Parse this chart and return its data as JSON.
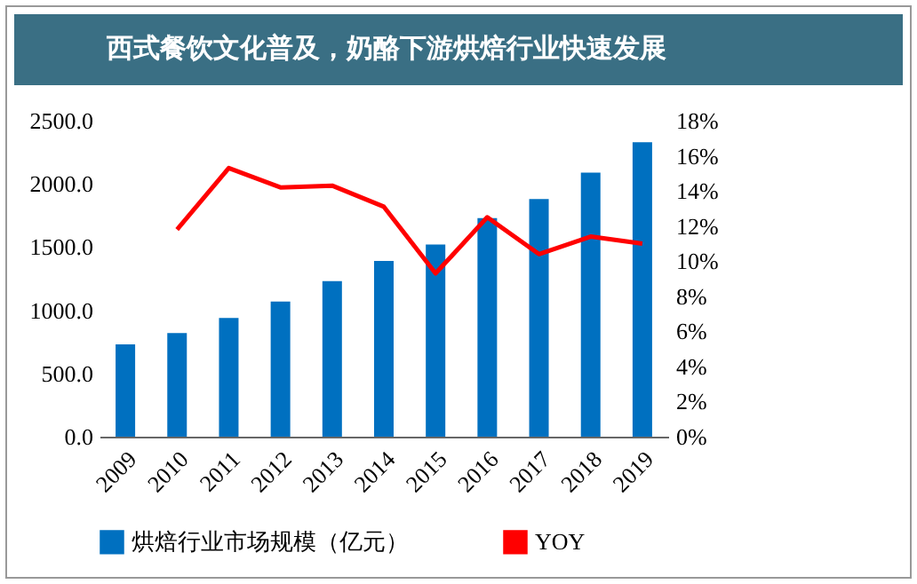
{
  "chart_data": {
    "type": "bar",
    "title": "西式餐饮文化普及，奶酪下游烘焙行业快速发展",
    "categories": [
      "2009",
      "2010",
      "2011",
      "2012",
      "2013",
      "2014",
      "2015",
      "2016",
      "2017",
      "2018",
      "2019"
    ],
    "series": [
      {
        "name": "烘焙行业市场规模（亿元）",
        "color": "#0070c0",
        "values": [
          730,
          820,
          940,
          1070,
          1230,
          1390,
          1520,
          1730,
          1880,
          2090,
          2330
        ]
      },
      {
        "name": "YOY",
        "type": "line",
        "axis": "y2",
        "color": "#ff0000",
        "values": [
          null,
          11.8,
          15.3,
          14.2,
          14.3,
          13.1,
          9.3,
          12.5,
          10.4,
          11.4,
          11.0
        ]
      }
    ],
    "ylim": [
      0,
      2500
    ],
    "yticks": [
      {
        "value": 0,
        "label": "0.0"
      },
      {
        "value": 500,
        "label": "500.0"
      },
      {
        "value": 1000,
        "label": "1000.0"
      },
      {
        "value": 1500,
        "label": "1500.0"
      },
      {
        "value": 2000,
        "label": "2000.0"
      },
      {
        "value": 2500,
        "label": "2500.0"
      }
    ],
    "y2lim": [
      0,
      18
    ],
    "y2ticks": [
      {
        "value": 0,
        "label": "0%"
      },
      {
        "value": 2,
        "label": "2%"
      },
      {
        "value": 4,
        "label": "4%"
      },
      {
        "value": 6,
        "label": "6%"
      },
      {
        "value": 8,
        "label": "8%"
      },
      {
        "value": 10,
        "label": "10%"
      },
      {
        "value": 12,
        "label": "12%"
      },
      {
        "value": 14,
        "label": "14%"
      },
      {
        "value": 16,
        "label": "16%"
      },
      {
        "value": 18,
        "label": "18%"
      }
    ],
    "grid": false,
    "legend": "bottom"
  }
}
